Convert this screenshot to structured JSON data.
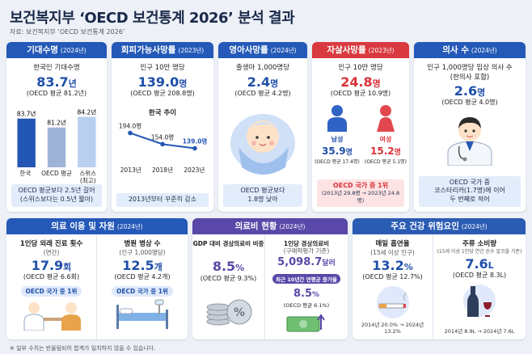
{
  "header": {
    "title": "보건복지부 ‘OECD 보건통계 2026’ 분석 결과",
    "source": "자료: 보건복지부 ‘OECD 보건통계 2026’"
  },
  "life_expectancy": {
    "title": "기대수명",
    "year": "(2024년)",
    "label": "한국인 기대수명",
    "value": "83.7",
    "unit": "년",
    "oecd": "(OECD 평균 81.2년)",
    "chart": {
      "type": "bar",
      "categories": [
        "한국",
        "OECD 평균",
        "스위스\n(최고)"
      ],
      "values": [
        83.7,
        81.2,
        84.2
      ],
      "value_labels": [
        "83.7년",
        "81.2년",
        "84.2년"
      ],
      "colors": [
        "#2456b5",
        "#9db4d6",
        "#b8cff0"
      ],
      "ylim": [
        70,
        85
      ]
    },
    "note": [
      "OECD 평균보다 2.5년 길어",
      "(스위스보다는 0.5년 짧아)"
    ]
  },
  "avoidable_mortality": {
    "title": "회피가능사망률",
    "year": "(2023년)",
    "label": "인구 10만 명당",
    "value": "139.0",
    "unit": "명",
    "oecd": "(OECD 평균 208.8명)",
    "chart": {
      "type": "line",
      "title": "한국 추이",
      "categories": [
        "2013년",
        "2018년",
        "2023년"
      ],
      "values": [
        194.0,
        154.0,
        139.0
      ],
      "value_labels": [
        "194.0명",
        "154.0명",
        "139.0명"
      ],
      "color": "#2456b5",
      "ylim": [
        100,
        210
      ]
    },
    "note": [
      "2013년부터 꾸준히 감소"
    ]
  },
  "infant_mortality": {
    "title": "영아사망률",
    "year": "(2024년)",
    "label": "출생아 1,000명당",
    "value": "2.4",
    "unit": "명",
    "oecd": "(OECD 평균 4.2명)",
    "note": [
      "OECD 평균보다",
      "1.8명 낮아"
    ]
  },
  "suicide": {
    "title": "자살사망률",
    "year": "(2023년)",
    "label": "인구 10만 명당",
    "value": "24.8",
    "unit": "명",
    "oecd": "(OECD 평균 10.9명)",
    "male": {
      "label": "남성",
      "value": "35.9",
      "unit": "명",
      "oecd": "(OECD 평균 17.4명)"
    },
    "female": {
      "label": "여성",
      "value": "15.2",
      "unit": "명",
      "oecd": "(OECD 평균 5.1명)"
    },
    "note": [
      "OECD 국가 중 1위",
      "(2013년 29.8명 → 2023년 24.8명)"
    ]
  },
  "doctors": {
    "title": "의사 수",
    "year": "(2024년)",
    "label": "인구 1,000명당 임상 의사 수",
    "sublabel": "(한의사 포함)",
    "value": "2.6",
    "unit": "명",
    "oecd": "(OECD 평균 4.0명)",
    "note": [
      "OECD 국가 중",
      "코스타리카(1.7명)에 이어",
      "두 번째로 적어"
    ]
  },
  "medical_use": {
    "title": "의료 이용 및 자원",
    "year": "(2024년)",
    "items": [
      {
        "label": "1인당 외래 진료 횟수",
        "sublabel": "(연간)",
        "value": "17.9",
        "unit": "회",
        "oecd": "(OECD 평균 6.6회)",
        "badge": "OECD 국가 중 1위"
      },
      {
        "label": "병원 병상 수",
        "sublabel": "(인구 1,000명당)",
        "value": "12.5",
        "unit": "개",
        "oecd": "(OECD 평균 4.2개)",
        "badge": "OECD 국가 중 1위"
      }
    ]
  },
  "expenditure": {
    "title": "의료비 현황",
    "year": "(2024년)",
    "items": [
      {
        "label": "GDP 대비 경상의료비 비중",
        "value": "8.5",
        "unit": "%",
        "oecd": "(OECD 평균 9.3%)"
      },
      {
        "label": "1인당 경상의료비",
        "sublabel": "(구매력평가 기준)",
        "value": "5,098.7",
        "unit": "달러",
        "badge": "최근 10년간 연평균 증가율",
        "growth_value": "8.5",
        "growth_unit": "%",
        "growth_oecd": "(OECD 평균 6.1%)"
      }
    ]
  },
  "risk": {
    "title": "주요 건강 위험요인",
    "year": "(2024년)",
    "items": [
      {
        "label": "매일 흡연율",
        "sublabel": "(15세 이상 인구)",
        "value": "13.2",
        "unit": "%",
        "oecd": "(OECD 평균 12.7%)",
        "trend": "2014년 20.0% → 2024년 13.2%"
      },
      {
        "label": "주류 소비량",
        "sublabel": "(15세 이상 1인당 연간 순수 알코올 기준)",
        "value": "7.6",
        "unit": "L",
        "oecd": "(OECD 평균 8.3L)",
        "trend": "2014년 8.9L → 2024년 7.6L"
      }
    ]
  },
  "footnote": "※ 일부 수치는 반올림되어 합계가 일치하지 않을 수 있습니다."
}
